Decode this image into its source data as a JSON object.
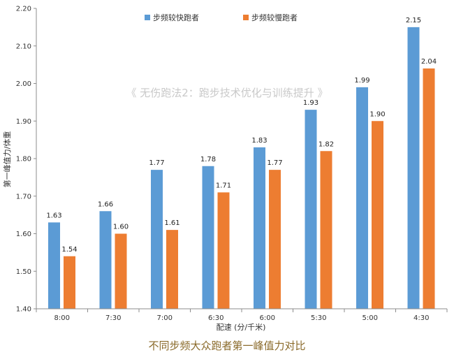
{
  "chart_data": {
    "type": "bar",
    "title": "",
    "categories": [
      "8:00",
      "7:30",
      "7:00",
      "6:30",
      "6:00",
      "5:30",
      "5:00",
      "4:30"
    ],
    "series": [
      {
        "name": "步频较快跑者",
        "color": "#5b9bd5",
        "values": [
          1.63,
          1.66,
          1.77,
          1.78,
          1.83,
          1.93,
          1.99,
          2.15
        ]
      },
      {
        "name": "步频较慢跑者",
        "color": "#ed7d31",
        "values": [
          1.54,
          1.6,
          1.61,
          1.71,
          1.77,
          1.82,
          1.9,
          2.04
        ]
      }
    ],
    "xlabel": "配速 (分/千米)",
    "ylabel": "第一峰值力/体重",
    "ylim": [
      1.4,
      2.2
    ],
    "yticks": [
      "1.40",
      "1.50",
      "1.60",
      "1.70",
      "1.80",
      "1.90",
      "2.00",
      "2.10",
      "2.20"
    ],
    "grid": false,
    "legend_position": "top"
  },
  "watermark": "《 无伤跑法2：跑步技术优化与训练提升 》",
  "caption": "不同步频大众跑者第一峰值力对比"
}
